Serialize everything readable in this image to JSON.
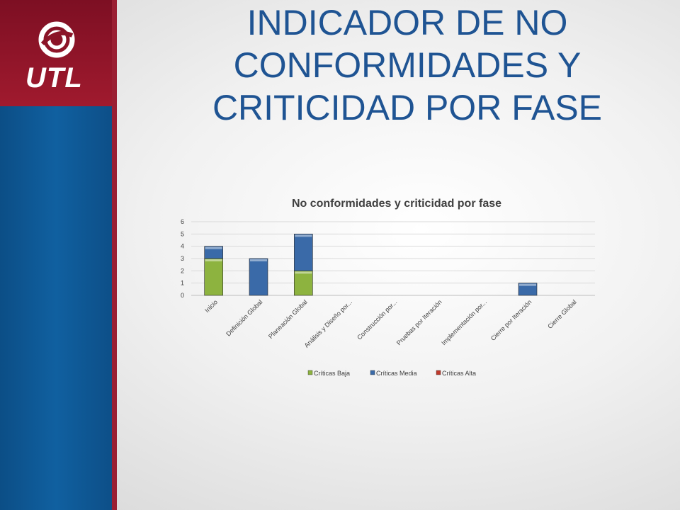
{
  "brand": {
    "logo_text": "UTL"
  },
  "slide": {
    "title": "INDICADOR DE NO CONFORMIDADES Y CRITICIDAD POR FASE"
  },
  "chart_data": {
    "type": "bar",
    "stacked": true,
    "title": "No conformidades y criticidad por fase",
    "categories": [
      "Inicio",
      "Definición Global",
      "Planeación Global",
      "Análisis y Diseño por...",
      "Construcción por...",
      "Pruebas por Iteración",
      "Implementación por...",
      "Cierre por Iteración",
      "Cierre Global"
    ],
    "series": [
      {
        "name": "Críticas Baja",
        "color": "#8db33f",
        "values": [
          3,
          0,
          2,
          0,
          0,
          0,
          0,
          0,
          0
        ]
      },
      {
        "name": "Críticas Media",
        "color": "#3a6aa8",
        "values": [
          1,
          3,
          3,
          0,
          0,
          0,
          0,
          1,
          0
        ]
      },
      {
        "name": "Críticas Alta",
        "color": "#c0392b",
        "values": [
          0,
          0,
          0,
          0,
          0,
          0,
          0,
          0,
          0
        ]
      }
    ],
    "yticks": [
      0,
      1,
      2,
      3,
      4,
      5,
      6
    ],
    "ylim": [
      0,
      6
    ],
    "grid": true,
    "legend_position": "bottom"
  }
}
